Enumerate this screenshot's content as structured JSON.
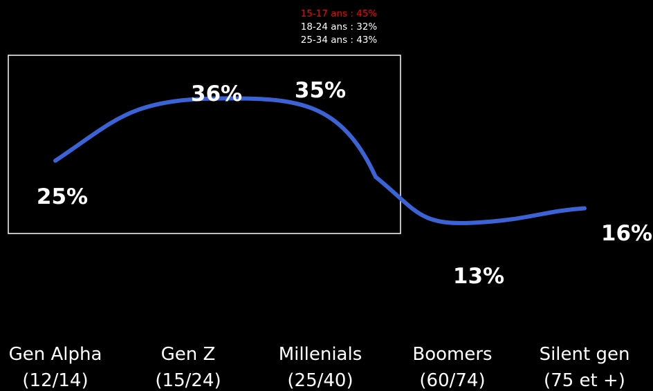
{
  "chart_data": {
    "type": "line",
    "categories": [
      {
        "name": "Gen Alpha",
        "range": "(12/14)"
      },
      {
        "name": "Gen Z",
        "range": "(15/24)"
      },
      {
        "name": "Millenials",
        "range": "(25/40)"
      },
      {
        "name": "Boomers",
        "range": "(60/74)"
      },
      {
        "name": "Silent gen",
        "range": "(75 et +)"
      }
    ],
    "values": [
      25,
      36,
      35,
      13,
      16
    ],
    "data_labels": [
      "25%",
      "36%",
      "35%",
      "13%",
      "16%"
    ],
    "line_color": "#3b63d6",
    "highlight_box": {
      "covers_categories": [
        "Gen Alpha",
        "Gen Z",
        "Millenials"
      ],
      "annotation": [
        {
          "text": "15-17 ans : 45%",
          "color": "#ff0000"
        },
        {
          "text": "18-24 ans : 32%",
          "color": "#ffffff"
        },
        {
          "text": "25-34 ans : 43%",
          "color": "#ffffff"
        }
      ]
    },
    "background": "#000000",
    "grid": false,
    "legend": "none"
  }
}
